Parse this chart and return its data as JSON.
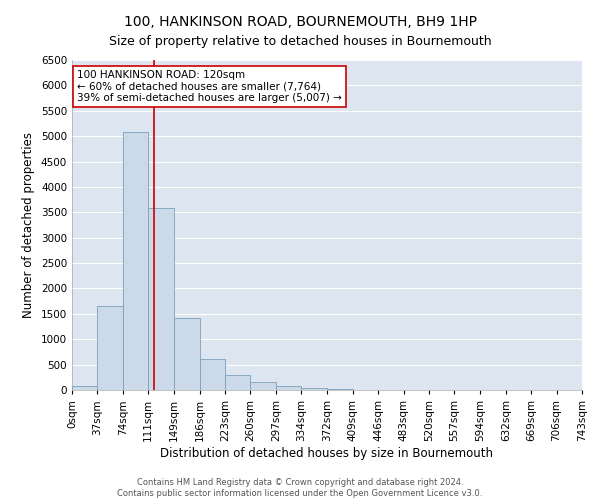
{
  "title": "100, HANKINSON ROAD, BOURNEMOUTH, BH9 1HP",
  "subtitle": "Size of property relative to detached houses in Bournemouth",
  "xlabel": "Distribution of detached houses by size in Bournemouth",
  "ylabel": "Number of detached properties",
  "bin_edges": [
    0,
    37,
    74,
    111,
    149,
    186,
    223,
    260,
    297,
    334,
    372,
    409,
    446,
    483,
    520,
    557,
    594,
    632,
    669,
    706,
    743
  ],
  "bin_counts": [
    70,
    1650,
    5080,
    3580,
    1420,
    610,
    300,
    155,
    70,
    30,
    10,
    5,
    0,
    0,
    0,
    0,
    0,
    0,
    0,
    0
  ],
  "bar_facecolor": "#ccd9e8",
  "bar_edgecolor": "#7aa0bb",
  "vline_x": 120,
  "vline_color": "#cc0000",
  "ylim": [
    0,
    6500
  ],
  "yticks": [
    0,
    500,
    1000,
    1500,
    2000,
    2500,
    3000,
    3500,
    4000,
    4500,
    5000,
    5500,
    6000,
    6500
  ],
  "annotation_title": "100 HANKINSON ROAD: 120sqm",
  "annotation_line1": "← 60% of detached houses are smaller (7,764)",
  "annotation_line2": "39% of semi-detached houses are larger (5,007) →",
  "annotation_box_facecolor": "#ffffff",
  "annotation_box_edgecolor": "#cc0000",
  "footnote1": "Contains HM Land Registry data © Crown copyright and database right 2024.",
  "footnote2": "Contains public sector information licensed under the Open Government Licence v3.0.",
  "fig_facecolor": "#ffffff",
  "plot_facecolor": "#dde6f0",
  "grid_color": "#ffffff",
  "title_fontsize": 10,
  "subtitle_fontsize": 9,
  "axis_label_fontsize": 8.5,
  "tick_fontsize": 7.5,
  "annotation_fontsize": 7.5,
  "footnote_fontsize": 6
}
